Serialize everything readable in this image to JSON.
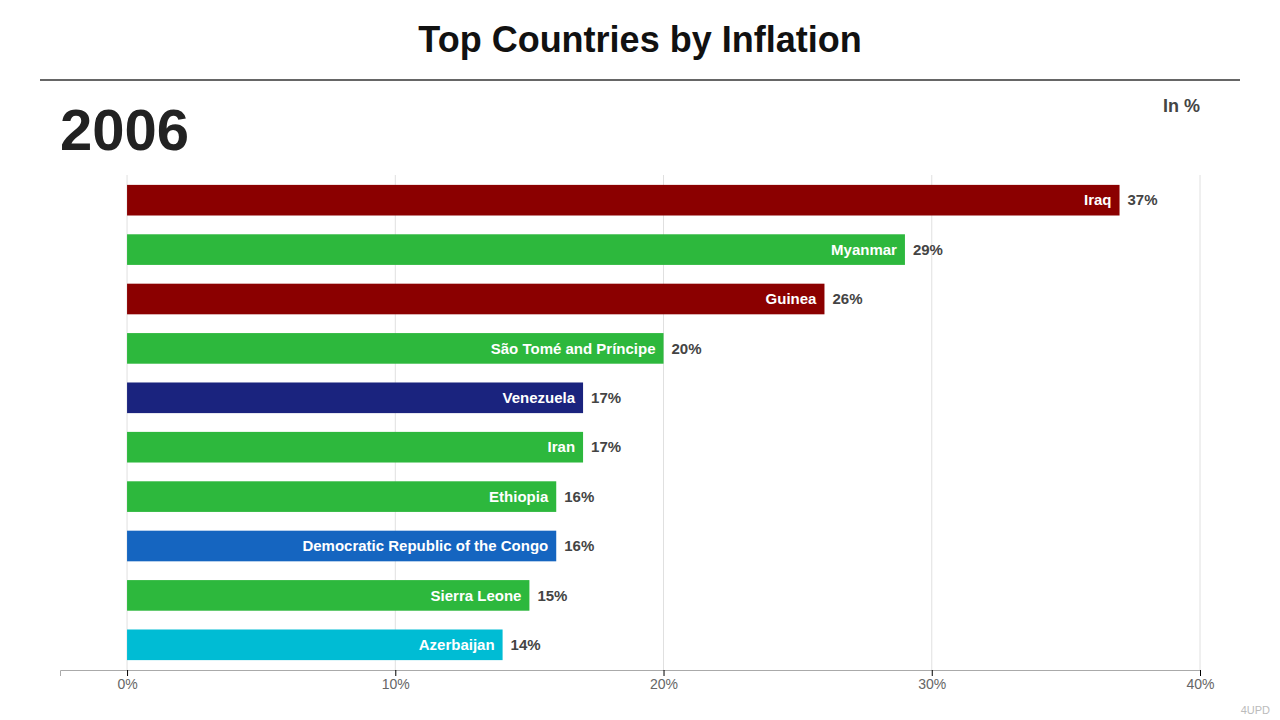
{
  "chart_data": {
    "type": "bar",
    "orientation": "horizontal",
    "title": "Top Countries by Inflation",
    "subtitle": "In %",
    "annotations": [
      "2006",
      "4UPD"
    ],
    "categories": [
      "Iraq",
      "Myanmar",
      "Guinea",
      "São Tomé and Príncipe",
      "Venezuela",
      "Iran",
      "Ethiopia",
      "Democratic Republic of the Congo",
      "Sierra Leone",
      "Azerbaijan"
    ],
    "values": [
      37,
      29,
      26,
      20,
      17,
      17,
      16,
      16,
      15,
      14
    ],
    "value_labels": [
      "37%",
      "29%",
      "26%",
      "20%",
      "17%",
      "17%",
      "16%",
      "16%",
      "15%",
      "14%"
    ],
    "colors": [
      "#8B0000",
      "#2DB83D",
      "#8B0000",
      "#2DB83D",
      "#1a237e",
      "#2DB83D",
      "#2DB83D",
      "#1565C0",
      "#2DB83D",
      "#00bcd4"
    ],
    "xlim": [
      -2.5,
      40
    ],
    "xticks": [
      {
        "value": 0,
        "label": "0%"
      },
      {
        "value": 10,
        "label": "10%"
      },
      {
        "value": 20,
        "label": "20%"
      },
      {
        "value": 30,
        "label": "30%"
      },
      {
        "value": 40,
        "label": "40%"
      }
    ],
    "grid": true,
    "data_labels": true,
    "tick_labels": "x"
  }
}
